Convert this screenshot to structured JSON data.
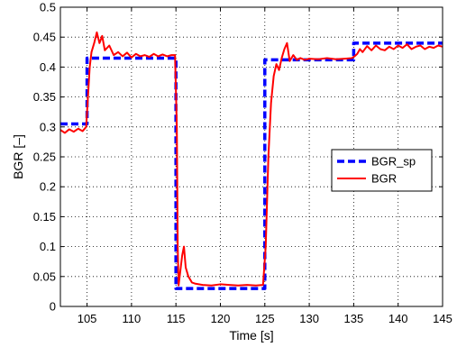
{
  "chart_data": {
    "type": "line",
    "title": "",
    "xlabel": "Time [s]",
    "ylabel": "BGR [–]",
    "xlim": [
      102,
      145
    ],
    "ylim": [
      0,
      0.5
    ],
    "xticks": [
      105,
      110,
      115,
      120,
      125,
      130,
      135,
      140,
      145
    ],
    "xtick_labels": [
      "105",
      "110",
      "115",
      "120",
      "125",
      "130",
      "135",
      "140",
      "145"
    ],
    "yticks": [
      0,
      0.05,
      0.1,
      0.15,
      0.2,
      0.25,
      0.3,
      0.35,
      0.4,
      0.45,
      0.5
    ],
    "ytick_labels": [
      "0",
      "0.05",
      "0.1",
      "0.15",
      "0.2",
      "0.25",
      "0.3",
      "0.35",
      "0.4",
      "0.45",
      "0.5"
    ],
    "grid": true,
    "legend_position": "right",
    "series": [
      {
        "name": "BGR_sp",
        "color": "#0000ff",
        "style": "dashed",
        "x": [
          102,
          105.0,
          105.0,
          115.0,
          115.0,
          125.0,
          125.0,
          135.0,
          135.0,
          145
        ],
        "y": [
          0.305,
          0.305,
          0.415,
          0.415,
          0.03,
          0.03,
          0.412,
          0.412,
          0.44,
          0.44
        ]
      },
      {
        "name": "BGR",
        "color": "#ff0000",
        "style": "solid",
        "x": [
          102,
          102.5,
          103,
          103.5,
          104,
          104.5,
          104.9,
          105.1,
          105.3,
          105.5,
          105.8,
          106.1,
          106.4,
          106.7,
          107,
          107.5,
          108,
          108.5,
          109,
          109.5,
          110,
          110.5,
          111,
          111.5,
          112,
          112.5,
          113,
          113.5,
          114,
          114.5,
          114.9,
          115.1,
          115.2,
          115.3,
          115.5,
          115.7,
          115.9,
          116.1,
          116.4,
          116.8,
          117.2,
          118,
          119,
          120,
          121,
          122,
          123,
          124,
          124.8,
          125.1,
          125.4,
          125.7,
          126.0,
          126.3,
          126.6,
          126.9,
          127.2,
          127.5,
          127.8,
          128.2,
          128.6,
          129,
          129.5,
          130,
          131,
          132,
          133,
          134,
          134.8,
          135.1,
          135.4,
          135.7,
          136,
          136.5,
          137,
          137.5,
          138,
          138.5,
          139,
          139.5,
          140,
          140.5,
          141,
          141.5,
          142,
          142.5,
          143,
          143.5,
          144,
          144.5,
          145
        ],
        "y": [
          0.295,
          0.29,
          0.296,
          0.292,
          0.297,
          0.293,
          0.3,
          0.35,
          0.4,
          0.425,
          0.44,
          0.458,
          0.44,
          0.452,
          0.428,
          0.436,
          0.42,
          0.425,
          0.418,
          0.424,
          0.416,
          0.422,
          0.418,
          0.42,
          0.417,
          0.422,
          0.418,
          0.421,
          0.418,
          0.42,
          0.42,
          0.3,
          0.1,
          0.035,
          0.06,
          0.085,
          0.1,
          0.065,
          0.05,
          0.04,
          0.038,
          0.036,
          0.035,
          0.037,
          0.036,
          0.035,
          0.036,
          0.035,
          0.036,
          0.1,
          0.25,
          0.34,
          0.385,
          0.405,
          0.395,
          0.415,
          0.43,
          0.44,
          0.41,
          0.42,
          0.412,
          0.415,
          0.412,
          0.414,
          0.413,
          0.415,
          0.413,
          0.414,
          0.415,
          0.418,
          0.422,
          0.43,
          0.425,
          0.435,
          0.428,
          0.436,
          0.43,
          0.428,
          0.434,
          0.43,
          0.436,
          0.432,
          0.438,
          0.43,
          0.434,
          0.436,
          0.43,
          0.434,
          0.432,
          0.436,
          0.434
        ]
      }
    ]
  }
}
